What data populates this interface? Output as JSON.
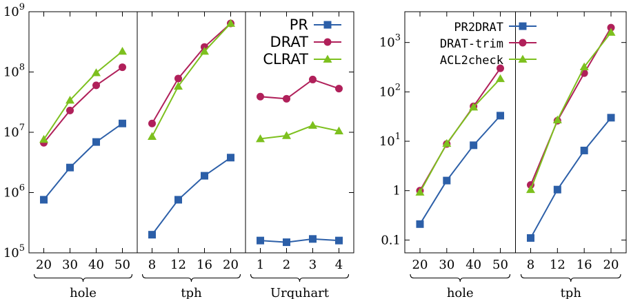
{
  "colors": {
    "blue": "#2c5fa8",
    "red": "#b0205a",
    "green": "#7dc01e"
  },
  "chart_data": [
    {
      "type": "line",
      "yscale": "log",
      "ylim": [
        100000,
        1000000000
      ],
      "y_ticks": [
        {
          "value": 100000,
          "mant": "10",
          "exp": "5"
        },
        {
          "value": 1000000,
          "mant": "10",
          "exp": "6"
        },
        {
          "value": 10000000,
          "mant": "10",
          "exp": "7"
        },
        {
          "value": 100000000,
          "mant": "10",
          "exp": "8"
        },
        {
          "value": 1000000000,
          "mant": "10",
          "exp": "9"
        }
      ],
      "legend_position": "top-right",
      "groups": [
        {
          "label": "hole",
          "x": [
            "20",
            "30",
            "40",
            "50"
          ],
          "series": [
            {
              "name": "PR",
              "values": [
                760000,
                2600000,
                6900000,
                14000000
              ]
            },
            {
              "name": "DRAT",
              "values": [
                6700000,
                23000000,
                60000000,
                120000000
              ]
            },
            {
              "name": "CLRAT",
              "values": [
                7600000,
                34000000,
                97000000,
                220000000
              ]
            }
          ]
        },
        {
          "label": "tph",
          "x": [
            "8",
            "12",
            "16",
            "20"
          ],
          "series": [
            {
              "name": "PR",
              "values": [
                200000,
                760000,
                1900000,
                3800000
              ]
            },
            {
              "name": "DRAT",
              "values": [
                14000000,
                78000000,
                260000000,
                640000000
              ]
            },
            {
              "name": "CLRAT",
              "values": [
                8500000,
                58000000,
                220000000,
                640000000
              ]
            }
          ]
        },
        {
          "label": "Urquhart",
          "x": [
            "1",
            "2",
            "3",
            "4"
          ],
          "series": [
            {
              "name": "PR",
              "values": [
                160000,
                150000,
                170000,
                160000
              ]
            },
            {
              "name": "DRAT",
              "values": [
                39000000,
                36000000,
                75000000,
                53000000
              ]
            },
            {
              "name": "CLRAT",
              "values": [
                7800000,
                8800000,
                13000000,
                10500000
              ]
            }
          ]
        }
      ]
    },
    {
      "type": "line",
      "yscale": "log",
      "ylim": [
        0.055,
        4200
      ],
      "y_ticks": [
        {
          "value": 0.1,
          "label": "0.1"
        },
        {
          "value": 1,
          "label": "1"
        },
        {
          "value": 10,
          "mant": "10",
          "exp": "1"
        },
        {
          "value": 100,
          "mant": "10",
          "exp": "2"
        },
        {
          "value": 1000,
          "mant": "10",
          "exp": "3"
        }
      ],
      "legend_position": "top-right",
      "groups": [
        {
          "label": "hole",
          "x": [
            "20",
            "30",
            "40",
            "50"
          ],
          "series": [
            {
              "name": "PR2DRAT",
              "values": [
                0.21,
                1.6,
                8.3,
                33
              ]
            },
            {
              "name": "DRAT-trim",
              "values": [
                1.0,
                8.8,
                51,
                300
              ]
            },
            {
              "name": "ACL2check",
              "values": [
                0.93,
                9.0,
                49,
                185
              ]
            }
          ]
        },
        {
          "label": "tph",
          "x": [
            "8",
            "12",
            "16",
            "20"
          ],
          "series": [
            {
              "name": "PR2DRAT",
              "values": [
                0.11,
                1.05,
                6.5,
                30
              ]
            },
            {
              "name": "DRAT-trim",
              "values": [
                1.3,
                26,
                240,
                2000
              ]
            },
            {
              "name": "ACL2check",
              "values": [
                1.05,
                27,
                320,
                1600
              ]
            }
          ]
        }
      ]
    }
  ]
}
